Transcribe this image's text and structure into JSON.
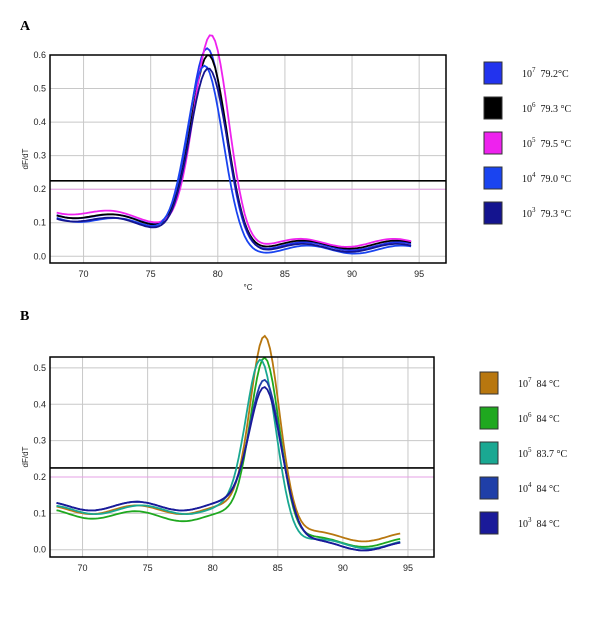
{
  "chart_data": [
    {
      "panel_label": "A",
      "type": "line",
      "xlabel": "°C",
      "ylabel": "dF/dT",
      "xlim": [
        67.5,
        97
      ],
      "ylim": [
        -0.02,
        0.6
      ],
      "xticks": [
        70,
        75,
        80,
        85,
        90,
        95
      ],
      "yticks": [
        0.0,
        0.1,
        0.2,
        0.3,
        0.4,
        0.5,
        0.6
      ],
      "ytick_labels": [
        "0.0",
        "0.1",
        "0.2",
        "0.3",
        "0.4",
        "0.5",
        "0.6"
      ],
      "grid": true,
      "threshold_line": 0.225,
      "reference_line": 0.2,
      "legend_position": "right",
      "series": [
        {
          "name": "10",
          "exp": "7",
          "tm": "79.2°C",
          "color": "#2233ee",
          "base": 0.09,
          "left": 0.13,
          "peak": 0.52,
          "center": 79.2,
          "sigma": 1.3,
          "tail": 0.03
        },
        {
          "name": "10",
          "exp": "6",
          "tm": "79.3 °C",
          "color": "#000000",
          "base": 0.09,
          "left": 0.13,
          "peak": 0.5,
          "center": 79.3,
          "sigma": 1.3,
          "tail": 0.035
        },
        {
          "name": "10",
          "exp": "5",
          "tm": "79.5 °C",
          "color": "#ee22ee",
          "base": 0.1,
          "left": 0.14,
          "peak": 0.55,
          "center": 79.5,
          "sigma": 1.25,
          "tail": 0.04
        },
        {
          "name": "10",
          "exp": "4",
          "tm": "79.0 °C",
          "color": "#1a44f0",
          "base": 0.08,
          "left": 0.12,
          "peak": 0.48,
          "center": 79.0,
          "sigma": 1.3,
          "tail": 0.02
        },
        {
          "name": "10",
          "exp": "3",
          "tm": "79.3 °C",
          "color": "#14148f",
          "base": 0.08,
          "left": 0.12,
          "peak": 0.47,
          "center": 79.3,
          "sigma": 1.35,
          "tail": 0.025
        }
      ]
    },
    {
      "panel_label": "B",
      "type": "line",
      "xlabel": "",
      "ylabel": "dF/dT",
      "xlim": [
        67.5,
        97
      ],
      "ylim": [
        -0.02,
        0.53
      ],
      "xticks": [
        70,
        75,
        80,
        85,
        90,
        95
      ],
      "yticks": [
        0.0,
        0.1,
        0.2,
        0.3,
        0.4,
        0.5
      ],
      "ytick_labels": [
        "0.0",
        "0.1",
        "0.2",
        "0.3",
        "0.4",
        "0.5"
      ],
      "grid": true,
      "threshold_line": 0.225,
      "reference_line": 0.2,
      "legend_position": "right",
      "series": [
        {
          "name": "10",
          "exp": "7",
          "tm": "84 °C",
          "color": "#b8770f",
          "base": 0.11,
          "left": 0.11,
          "peak": 0.49,
          "center": 84.0,
          "sigma": 1.1,
          "tail": 0.035
        },
        {
          "name": "10",
          "exp": "6",
          "tm": "84 °C",
          "color": "#1fa81f",
          "base": 0.09,
          "left": 0.1,
          "peak": 0.45,
          "center": 84.0,
          "sigma": 1.1,
          "tail": 0.02
        },
        {
          "name": "10",
          "exp": "5",
          "tm": "83.7 °C",
          "color": "#1aa892",
          "base": 0.11,
          "left": 0.11,
          "peak": 0.42,
          "center": 83.7,
          "sigma": 1.12,
          "tail": 0.015
        },
        {
          "name": "10",
          "exp": "4",
          "tm": "84 °C",
          "color": "#1f3fa8",
          "base": 0.12,
          "left": 0.12,
          "peak": 0.36,
          "center": 84.0,
          "sigma": 1.15,
          "tail": 0.01
        },
        {
          "name": "10",
          "exp": "3",
          "tm": "84 °C",
          "color": "#1a1a99",
          "base": 0.12,
          "left": 0.12,
          "peak": 0.34,
          "center": 84.0,
          "sigma": 1.18,
          "tail": 0.01
        }
      ]
    }
  ]
}
